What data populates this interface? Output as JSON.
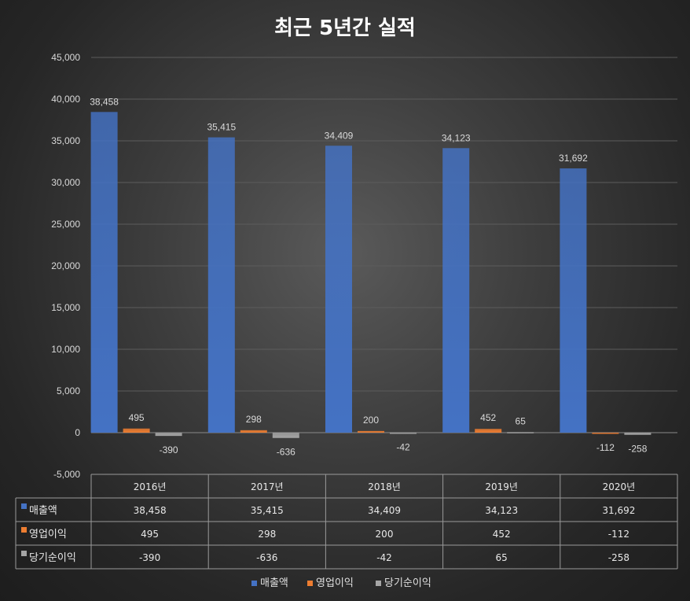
{
  "chart_data": {
    "type": "bar",
    "title": "최근 5년간 실적",
    "categories": [
      "2016년",
      "2017년",
      "2018년",
      "2019년",
      "2020년"
    ],
    "series": [
      {
        "name": "매출액",
        "values": [
          38458,
          35415,
          34409,
          34123,
          31692
        ],
        "labels": [
          "38,458",
          "35,415",
          "34,409",
          "34,123",
          "31,692"
        ],
        "color": "#4472c4"
      },
      {
        "name": "영업이익",
        "values": [
          495,
          298,
          200,
          452,
          -112
        ],
        "labels": [
          "495",
          "298",
          "200",
          "452",
          "-112"
        ],
        "color": "#ed7d31"
      },
      {
        "name": "당기순이익",
        "values": [
          -390,
          -636,
          -42,
          65,
          -258
        ],
        "labels": [
          "-390",
          "-636",
          "-42",
          "65",
          "-258"
        ],
        "color": "#a5a5a5"
      }
    ],
    "ylim": [
      -5000,
      45000
    ],
    "yticks": [
      -5000,
      0,
      5000,
      10000,
      15000,
      20000,
      25000,
      30000,
      35000,
      40000,
      45000
    ],
    "ytick_labels": [
      "-5,000",
      "0",
      "5,000",
      "10,000",
      "15,000",
      "20,000",
      "25,000",
      "30,000",
      "35,000",
      "40,000",
      "45,000"
    ],
    "grid": true,
    "data_table": true,
    "legend": "bottom"
  }
}
